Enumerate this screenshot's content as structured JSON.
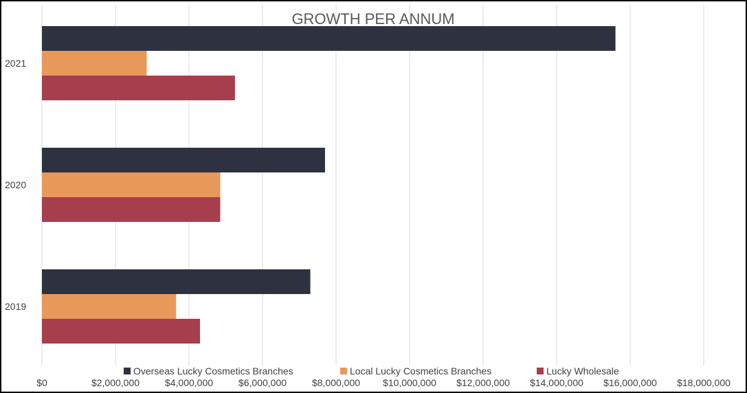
{
  "chart_data": {
    "type": "bar",
    "orientation": "horizontal",
    "title": "GROWTH PER ANNUM",
    "categories": [
      "2021",
      "2020",
      "2019"
    ],
    "series": [
      {
        "name": "Overseas Lucky Cosmetics Branches",
        "color": "#2e3240",
        "values": [
          15600000,
          7700000,
          7300000
        ]
      },
      {
        "name": "Local Lucky Cosmetics Branches",
        "color": "#e8995a",
        "values": [
          2850000,
          4850000,
          3650000
        ]
      },
      {
        "name": "Lucky Wholesale",
        "color": "#a63e4e",
        "values": [
          5250000,
          4850000,
          4300000
        ]
      }
    ],
    "xlim": [
      0,
      18000000
    ],
    "x_ticks": [
      0,
      2000000,
      4000000,
      6000000,
      8000000,
      10000000,
      12000000,
      14000000,
      16000000,
      18000000
    ],
    "x_tick_labels": [
      "$0",
      "$2,000,000",
      "$4,000,000",
      "$6,000,000",
      "$8,000,000",
      "$10,000,000",
      "$12,000,000",
      "$14,000,000",
      "$16,000,000",
      "$18,000,000"
    ],
    "grid": true,
    "legend_position": "bottom",
    "xlabel": "",
    "ylabel": ""
  }
}
